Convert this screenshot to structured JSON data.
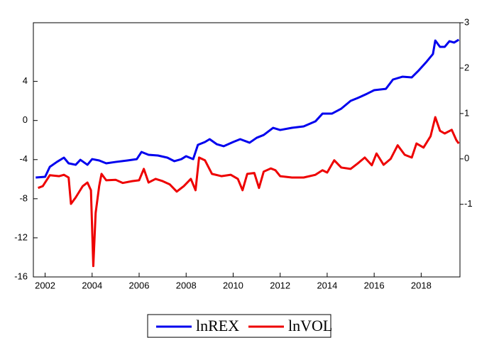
{
  "chart_data": {
    "type": "line",
    "xlim": [
      2001.5,
      2019.65
    ],
    "xticks": [
      2002,
      2004,
      2006,
      2008,
      2010,
      2012,
      2014,
      2016,
      2018
    ],
    "ylim": [
      -16,
      10
    ],
    "yticks": [
      -16,
      -12,
      -8,
      -4,
      0,
      4
    ],
    "y2lim": [
      -2.6,
      3
    ],
    "y2ticks": [
      -1,
      0,
      1,
      2,
      3
    ],
    "series": [
      {
        "name": "lnREX",
        "color": "#0000ee",
        "x": [
          2001.6,
          2002.0,
          2002.2,
          2002.5,
          2002.8,
          2003.0,
          2003.3,
          2003.5,
          2003.8,
          2004.0,
          2004.3,
          2004.6,
          2005.0,
          2005.5,
          2005.9,
          2006.1,
          2006.4,
          2006.8,
          2007.2,
          2007.5,
          2007.8,
          2008.0,
          2008.3,
          2008.5,
          2008.8,
          2009.0,
          2009.3,
          2009.6,
          2010.0,
          2010.3,
          2010.7,
          2011.0,
          2011.3,
          2011.7,
          2012.0,
          2012.5,
          2013.0,
          2013.5,
          2013.8,
          2014.2,
          2014.6,
          2015.0,
          2015.3,
          2015.7,
          2016.0,
          2016.5,
          2016.8,
          2017.2,
          2017.6,
          2017.9,
          2018.2,
          2018.5,
          2018.6,
          2018.8,
          2019.0,
          2019.2,
          2019.4,
          2019.6
        ],
        "values": [
          -5.83,
          -5.76,
          -4.74,
          -4.24,
          -3.8,
          -4.38,
          -4.53,
          -4.02,
          -4.53,
          -3.95,
          -4.09,
          -4.38,
          -4.24,
          -4.09,
          -3.95,
          -3.22,
          -3.51,
          -3.58,
          -3.8,
          -4.16,
          -3.95,
          -3.65,
          -3.95,
          -2.49,
          -2.2,
          -1.91,
          -2.42,
          -2.63,
          -2.2,
          -1.91,
          -2.27,
          -1.77,
          -1.48,
          -0.75,
          -0.97,
          -0.75,
          -0.6,
          -0.09,
          0.7,
          0.7,
          1.21,
          2.01,
          2.3,
          2.74,
          3.1,
          3.24,
          4.19,
          4.48,
          4.41,
          5.13,
          5.93,
          6.8,
          8.18,
          7.53,
          7.53,
          8.11,
          7.97,
          8.26
        ]
      },
      {
        "name": "lnVOL",
        "color": "#ee0000",
        "axis": "y2",
        "x": [
          2001.7,
          2001.9,
          2002.2,
          2002.6,
          2002.8,
          2003.0,
          2003.1,
          2003.3,
          2003.6,
          2003.8,
          2003.95,
          2004.05,
          2004.15,
          2004.3,
          2004.4,
          2004.6,
          2005.0,
          2005.3,
          2005.7,
          2006.0,
          2006.2,
          2006.4,
          2006.7,
          2007.0,
          2007.3,
          2007.6,
          2007.9,
          2008.2,
          2008.4,
          2008.55,
          2008.8,
          2009.1,
          2009.5,
          2009.9,
          2010.2,
          2010.4,
          2010.6,
          2010.9,
          2011.1,
          2011.3,
          2011.6,
          2011.8,
          2012.0,
          2012.5,
          2013.0,
          2013.5,
          2013.8,
          2014.0,
          2014.3,
          2014.6,
          2015.0,
          2015.3,
          2015.6,
          2015.9,
          2016.1,
          2016.4,
          2016.7,
          2017.0,
          2017.3,
          2017.6,
          2017.8,
          2018.1,
          2018.4,
          2018.6,
          2018.8,
          2019.0,
          2019.3,
          2019.5,
          2019.6
        ],
        "values": [
          -0.64,
          -0.6,
          -0.36,
          -0.38,
          -0.35,
          -0.41,
          -0.99,
          -0.85,
          -0.6,
          -0.52,
          -0.69,
          -2.36,
          -1.19,
          -0.6,
          -0.33,
          -0.47,
          -0.46,
          -0.53,
          -0.49,
          -0.47,
          -0.22,
          -0.52,
          -0.44,
          -0.49,
          -0.56,
          -0.72,
          -0.6,
          -0.44,
          -0.69,
          0.03,
          -0.03,
          -0.33,
          -0.38,
          -0.35,
          -0.44,
          -0.69,
          -0.33,
          -0.31,
          -0.64,
          -0.28,
          -0.21,
          -0.25,
          -0.38,
          -0.41,
          -0.41,
          -0.35,
          -0.25,
          -0.3,
          -0.03,
          -0.19,
          -0.22,
          -0.1,
          0.03,
          -0.14,
          0.12,
          -0.13,
          0.0,
          0.3,
          0.09,
          0.03,
          0.34,
          0.25,
          0.5,
          0.92,
          0.62,
          0.56,
          0.64,
          0.41,
          0.34
        ]
      }
    ]
  }
}
